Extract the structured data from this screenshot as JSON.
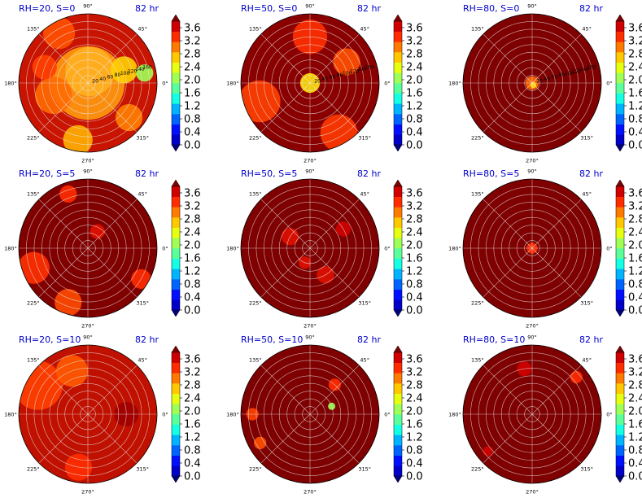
{
  "chart_data": {
    "type": "heatmap",
    "projection": "polar",
    "time_label": "82 hr",
    "colorbar": {
      "ticks": [
        "0.0",
        "0.4",
        "0.8",
        "1.2",
        "1.6",
        "2.0",
        "2.4",
        "2.8",
        "3.2",
        "3.6"
      ],
      "range": [
        0.0,
        3.8
      ],
      "extend": "both",
      "colormap": "jet",
      "colors": [
        "#00007f",
        "#0000c8",
        "#0010ff",
        "#0064ff",
        "#00b4ff",
        "#14ffe3",
        "#5aff9c",
        "#a0ff56",
        "#e6ff10",
        "#ffc800",
        "#ff7a00",
        "#ff2c00",
        "#d00000",
        "#7f0000"
      ]
    },
    "angle_labels": [
      "90°",
      "45°",
      "0°",
      "315°",
      "270°",
      "225°",
      "180°",
      "135°"
    ],
    "radius_labels": [
      "20",
      "40",
      "60",
      "80",
      "100",
      "120",
      "140",
      "160"
    ],
    "radius_max": 180,
    "panels": [
      {
        "title": "RH=20, S=0",
        "show_radius_labels": true,
        "background": "#c81400",
        "blobs": [
          {
            "r": 0,
            "theta": 0,
            "size": 60,
            "color": "#ff9a10"
          },
          {
            "r": 30,
            "theta": 80,
            "size": 40,
            "color": "#ffb020"
          },
          {
            "r": 100,
            "theta": 20,
            "size": 22,
            "color": "#ffd000"
          },
          {
            "r": 95,
            "theta": 200,
            "size": 30,
            "color": "#ff6a00"
          },
          {
            "r": 150,
            "theta": 120,
            "size": 26,
            "color": "#ff5000"
          },
          {
            "r": 150,
            "theta": 260,
            "size": 24,
            "color": "#ffb000"
          },
          {
            "r": 140,
            "theta": 320,
            "size": 22,
            "color": "#ff8000"
          },
          {
            "r": 150,
            "theta": 10,
            "size": 14,
            "color": "#a0ff56"
          },
          {
            "r": 120,
            "theta": 160,
            "size": 20,
            "color": "#ff4000"
          }
        ]
      },
      {
        "title": "RH=50, S=0",
        "show_radius_labels": true,
        "background": "#8a0000",
        "blobs": [
          {
            "r": 0,
            "theta": 0,
            "size": 16,
            "color": "#ffe000"
          },
          {
            "r": 120,
            "theta": 90,
            "size": 28,
            "color": "#ff3000"
          },
          {
            "r": 140,
            "theta": 200,
            "size": 34,
            "color": "#ff4000"
          },
          {
            "r": 150,
            "theta": 300,
            "size": 30,
            "color": "#ff3a00"
          },
          {
            "r": 110,
            "theta": 30,
            "size": 22,
            "color": "#ff5000"
          }
        ]
      },
      {
        "title": "RH=80, S=0",
        "show_radius_labels": true,
        "background": "#7f0000",
        "blobs": [
          {
            "r": 0,
            "theta": 0,
            "size": 11,
            "color": "#ff6a00"
          },
          {
            "r": 6,
            "theta": 300,
            "size": 5,
            "color": "#ffe000"
          }
        ]
      },
      {
        "title": "RH=20, S=5",
        "show_radius_labels": false,
        "background": "#800000",
        "blobs": [
          {
            "r": 150,
            "theta": 200,
            "size": 26,
            "color": "#ff3000"
          },
          {
            "r": 150,
            "theta": 250,
            "size": 22,
            "color": "#ff4a00"
          },
          {
            "r": 160,
            "theta": 330,
            "size": 16,
            "color": "#ff2c00"
          },
          {
            "r": 150,
            "theta": 110,
            "size": 14,
            "color": "#ff2c00"
          },
          {
            "r": 50,
            "theta": 60,
            "size": 12,
            "color": "#e01000"
          }
        ]
      },
      {
        "title": "RH=50, S=5",
        "show_radius_labels": false,
        "background": "#7f0000",
        "blobs": [
          {
            "r": 60,
            "theta": 150,
            "size": 14,
            "color": "#e01000"
          },
          {
            "r": 80,
            "theta": 300,
            "size": 14,
            "color": "#e01000"
          },
          {
            "r": 100,
            "theta": 30,
            "size": 12,
            "color": "#d00000"
          },
          {
            "r": 40,
            "theta": 250,
            "size": 10,
            "color": "#e01000"
          }
        ]
      },
      {
        "title": "RH=80, S=5",
        "show_radius_labels": false,
        "background": "#7f0000",
        "blobs": [
          {
            "r": 0,
            "theta": 0,
            "size": 9,
            "color": "#ff2c00"
          }
        ]
      },
      {
        "title": "RH=20, S=10",
        "show_radius_labels": false,
        "background": "#c01000",
        "blobs": [
          {
            "r": 150,
            "theta": 150,
            "size": 40,
            "color": "#ff4000"
          },
          {
            "r": 120,
            "theta": 110,
            "size": 26,
            "color": "#ff5a00"
          },
          {
            "r": 140,
            "theta": 260,
            "size": 22,
            "color": "#ff2c00"
          },
          {
            "r": 100,
            "theta": 0,
            "size": 20,
            "color": "#a00000"
          }
        ]
      },
      {
        "title": "RH=50, S=10",
        "show_radius_labels": false,
        "background": "#7f0000",
        "blobs": [
          {
            "r": 150,
            "theta": 180,
            "size": 10,
            "color": "#ff4000"
          },
          {
            "r": 150,
            "theta": 210,
            "size": 10,
            "color": "#ff5000"
          },
          {
            "r": 60,
            "theta": 20,
            "size": 6,
            "color": "#a0ff56"
          },
          {
            "r": 100,
            "theta": 50,
            "size": 10,
            "color": "#ff2c00"
          }
        ]
      },
      {
        "title": "RH=80, S=10",
        "show_radius_labels": false,
        "background": "#7f0000",
        "blobs": [
          {
            "r": 120,
            "theta": 100,
            "size": 12,
            "color": "#d00000"
          },
          {
            "r": 150,
            "theta": 40,
            "size": 10,
            "color": "#ff2c00"
          },
          {
            "r": 150,
            "theta": 220,
            "size": 8,
            "color": "#d00000"
          }
        ]
      }
    ]
  }
}
